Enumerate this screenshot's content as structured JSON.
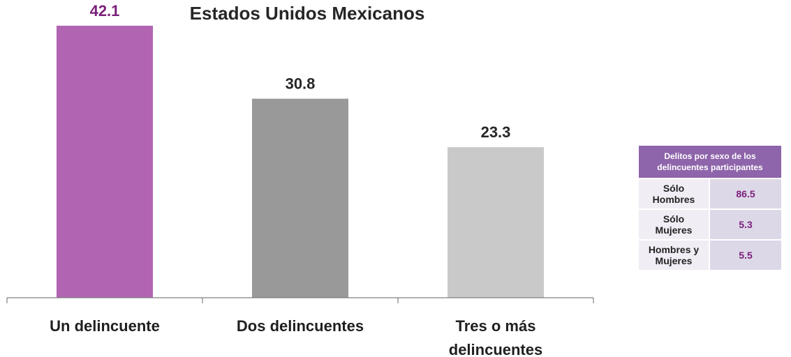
{
  "chart_data": {
    "type": "bar",
    "title": "Estados Unidos Mexicanos",
    "categories": [
      [
        "Un delincuente"
      ],
      [
        "Dos delincuentes"
      ],
      [
        "Tres o más",
        "delincuentes"
      ]
    ],
    "values": [
      42.1,
      30.8,
      23.3
    ],
    "value_labels": [
      "42.1",
      "30.8",
      "23.3"
    ],
    "bar_colors": [
      "#b164b1",
      "#999999",
      "#c9c9c9"
    ],
    "value_label_colors": [
      "#7a1f7a",
      "#262626",
      "#262626"
    ],
    "ylim": [
      0,
      45
    ],
    "grid": false,
    "legend": "none"
  },
  "side_table": {
    "header_lines": [
      "Delitos por sexo de los",
      "delincuentes participantes"
    ],
    "rows": [
      {
        "label_lines": [
          "Sólo",
          "Hombres"
        ],
        "value": "86.5"
      },
      {
        "label_lines": [
          "Sólo",
          "Mujeres"
        ],
        "value": "5.3"
      },
      {
        "label_lines": [
          "Hombres y",
          "Mujeres"
        ],
        "value": "5.5"
      }
    ],
    "header_color": "#8e64aa",
    "value_color": "#7a1f7a"
  }
}
